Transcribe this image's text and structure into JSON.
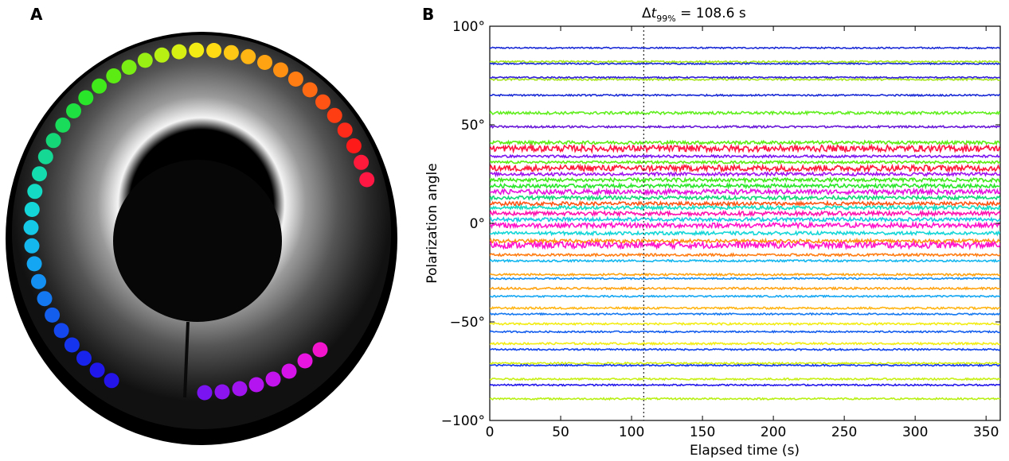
{
  "panels": {
    "a_label": "A",
    "b_label": "B"
  },
  "image_panel": {
    "spot_colors": [
      "#ff1744",
      "#ff1a3c",
      "#ff1a1a",
      "#ff2b1a",
      "#ff3d12",
      "#ff5414",
      "#ff6a12",
      "#ff7d12",
      "#ff9012",
      "#ffa312",
      "#ffb514",
      "#ffc814",
      "#ffdb14",
      "#f2ec14",
      "#d6f014",
      "#b8f014",
      "#99ee14",
      "#7aee14",
      "#5cec14",
      "#40ea1a",
      "#2ae62a",
      "#1ee040",
      "#18dc5a",
      "#14d878",
      "#14d894",
      "#14dcae",
      "#14dcc4",
      "#14d6d8",
      "#14c8e6",
      "#14b8ef",
      "#14a6f2",
      "#1490f2",
      "#1478f0",
      "#145eee",
      "#1448ee",
      "#1434ee",
      "#1824ec",
      "#2018ea",
      "#2414e8",
      "#7a14f0",
      "#8c14f0",
      "#a014f0",
      "#b414f0",
      "#c414ee",
      "#d614ea",
      "#e814e0",
      "#f214cc",
      "#ff14b0"
    ]
  },
  "chart_data": {
    "type": "line",
    "title": "",
    "annotation": {
      "prefix": "Δ",
      "symbol": "t",
      "subscript": "99%",
      "value_text": " = 108.6 s",
      "x": 108.6
    },
    "xlabel": "Elapsed time (s)",
    "ylabel": "Polarization angle",
    "xlim": [
      0,
      360
    ],
    "ylim": [
      -100,
      100
    ],
    "x_ticks": [
      0,
      50,
      100,
      150,
      200,
      250,
      300,
      350
    ],
    "x_tick_labels": [
      "0",
      "50",
      "100",
      "150",
      "200",
      "250",
      "300",
      "350"
    ],
    "y_ticks": [
      -100,
      -50,
      0,
      50,
      100
    ],
    "y_tick_labels": [
      "−100°",
      "−50°",
      "0°",
      "50°",
      "100°"
    ],
    "grid": false,
    "legend": "none",
    "series": [
      {
        "y": 89,
        "noise": 0.35,
        "color": "#1a2bd6"
      },
      {
        "y": 82,
        "noise": 0.45,
        "color": "#a8e61e"
      },
      {
        "y": 81,
        "noise": 0.35,
        "color": "#1a2bd6"
      },
      {
        "y": 73,
        "noise": 0.45,
        "color": "#a8e61e"
      },
      {
        "y": 74,
        "noise": 0.35,
        "color": "#3320d8"
      },
      {
        "y": 65,
        "noise": 0.4,
        "color": "#1a2bd6"
      },
      {
        "y": 56,
        "noise": 0.7,
        "color": "#60ee1e"
      },
      {
        "y": 49,
        "noise": 0.5,
        "color": "#6a18d8"
      },
      {
        "y": 41,
        "noise": 0.8,
        "color": "#5cec14"
      },
      {
        "y": 38,
        "noise": 1.6,
        "color": "#ff1744"
      },
      {
        "y": 34,
        "noise": 0.6,
        "color": "#7a14f0"
      },
      {
        "y": 31,
        "noise": 0.6,
        "color": "#5cec14"
      },
      {
        "y": 28,
        "noise": 1.5,
        "color": "#ff1a3c"
      },
      {
        "y": 25,
        "noise": 0.8,
        "color": "#a014f0"
      },
      {
        "y": 22,
        "noise": 0.9,
        "color": "#40ea1a"
      },
      {
        "y": 19,
        "noise": 0.9,
        "color": "#2ae62a"
      },
      {
        "y": 16,
        "noise": 1.2,
        "color": "#e814e0"
      },
      {
        "y": 13,
        "noise": 0.9,
        "color": "#14d878"
      },
      {
        "y": 10,
        "noise": 0.9,
        "color": "#ff5414"
      },
      {
        "y": 8,
        "noise": 0.9,
        "color": "#14dcc4"
      },
      {
        "y": 5,
        "noise": 1.0,
        "color": "#ff14b0"
      },
      {
        "y": 2,
        "noise": 0.9,
        "color": "#14c8e6"
      },
      {
        "y": -1,
        "noise": 1.2,
        "color": "#ff14cc"
      },
      {
        "y": -5,
        "noise": 0.8,
        "color": "#14d6d8"
      },
      {
        "y": -9,
        "noise": 0.9,
        "color": "#ff9012"
      },
      {
        "y": -11,
        "noise": 1.6,
        "color": "#ff14cc"
      },
      {
        "y": -16,
        "noise": 0.6,
        "color": "#ff7d12"
      },
      {
        "y": -19,
        "noise": 0.5,
        "color": "#14b8ef"
      },
      {
        "y": -26,
        "noise": 0.5,
        "color": "#ffa312"
      },
      {
        "y": -28,
        "noise": 0.4,
        "color": "#1490f2"
      },
      {
        "y": -33,
        "noise": 0.5,
        "color": "#ffa312"
      },
      {
        "y": -37,
        "noise": 0.4,
        "color": "#14a6f2"
      },
      {
        "y": -43,
        "noise": 0.5,
        "color": "#ffb514"
      },
      {
        "y": -46,
        "noise": 0.4,
        "color": "#1478f0"
      },
      {
        "y": -51,
        "noise": 0.5,
        "color": "#f2ec14"
      },
      {
        "y": -55,
        "noise": 0.4,
        "color": "#145eee"
      },
      {
        "y": -61,
        "noise": 0.5,
        "color": "#f2ec14"
      },
      {
        "y": -64,
        "noise": 0.4,
        "color": "#1448ee"
      },
      {
        "y": -71,
        "noise": 0.45,
        "color": "#d6f014"
      },
      {
        "y": -72,
        "noise": 0.4,
        "color": "#1434ee"
      },
      {
        "y": -79,
        "noise": 0.45,
        "color": "#c8f014"
      },
      {
        "y": -82,
        "noise": 0.4,
        "color": "#2418ea"
      },
      {
        "y": -89,
        "noise": 0.45,
        "color": "#b8f014"
      }
    ]
  }
}
